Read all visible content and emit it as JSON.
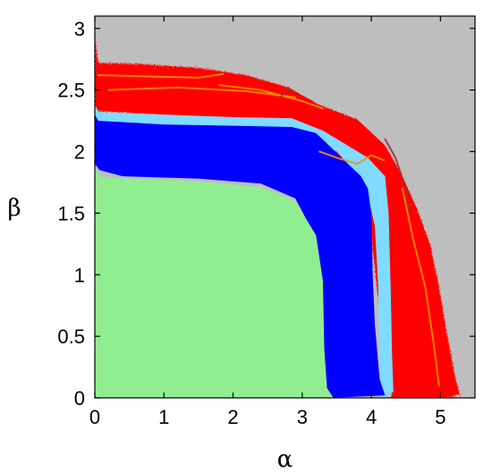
{
  "chart_data": {
    "type": "heatmap",
    "title": "",
    "xlabel": "α",
    "ylabel": "β",
    "xlim": [
      0,
      5.5
    ],
    "ylim": [
      0,
      3.1
    ],
    "x_ticks": [
      "0",
      "1",
      "2",
      "3",
      "4",
      "5"
    ],
    "y_ticks": [
      "0",
      "0.5",
      "1",
      "1.5",
      "2",
      "2.5",
      "3"
    ],
    "grid": false,
    "legend": "none",
    "colors": {
      "background": "#bebebe",
      "green": "#90ee90",
      "blue": "#0000ff",
      "cyan": "#7fdbff",
      "red": "#ff0000",
      "orange": "#ff8c00",
      "dark": "#a03030"
    },
    "regions": [
      {
        "color": "red",
        "boundary": [
          [
            0,
            2.92
          ],
          [
            0.05,
            2.72
          ],
          [
            0.7,
            2.71
          ],
          [
            1.5,
            2.68
          ],
          [
            2.2,
            2.62
          ],
          [
            2.8,
            2.52
          ],
          [
            3.25,
            2.38
          ],
          [
            3.8,
            2.26
          ],
          [
            4.2,
            2.05
          ],
          [
            4.45,
            1.8
          ],
          [
            4.65,
            1.55
          ],
          [
            4.85,
            1.25
          ],
          [
            4.98,
            0.9
          ],
          [
            5.1,
            0.5
          ],
          [
            5.22,
            0.15
          ],
          [
            5.28,
            0.03
          ],
          [
            5.1,
            0.0
          ],
          [
            4.3,
            0.0
          ],
          [
            4.2,
            0.35
          ],
          [
            4.08,
            0.9
          ],
          [
            3.97,
            1.45
          ],
          [
            3.88,
            1.72
          ],
          [
            3.3,
            2.12
          ],
          [
            2.5,
            2.24
          ],
          [
            1.5,
            2.28
          ],
          [
            0,
            2.33
          ]
        ]
      },
      {
        "color": "cyan",
        "boundary": [
          [
            0,
            2.38
          ],
          [
            0.06,
            2.32
          ],
          [
            1.0,
            2.3
          ],
          [
            2.0,
            2.28
          ],
          [
            2.85,
            2.27
          ],
          [
            3.3,
            2.17
          ],
          [
            3.95,
            1.95
          ],
          [
            4.2,
            1.8
          ],
          [
            4.25,
            1.5
          ],
          [
            4.28,
            0.9
          ],
          [
            4.3,
            0.35
          ],
          [
            4.32,
            0.05
          ],
          [
            4.15,
            0.0
          ],
          [
            4.12,
            0.2
          ],
          [
            4.1,
            0.9
          ],
          [
            4.05,
            1.4
          ],
          [
            3.9,
            1.75
          ],
          [
            3.5,
            2.0
          ],
          [
            3.0,
            2.12
          ],
          [
            2.0,
            2.15
          ],
          [
            1.0,
            2.18
          ],
          [
            0,
            2.23
          ]
        ]
      },
      {
        "color": "blue",
        "boundary": [
          [
            0,
            2.3
          ],
          [
            0.05,
            2.25
          ],
          [
            1.0,
            2.22
          ],
          [
            2.0,
            2.21
          ],
          [
            2.85,
            2.2
          ],
          [
            3.2,
            2.15
          ],
          [
            3.35,
            2.07
          ],
          [
            3.55,
            1.96
          ],
          [
            3.85,
            1.8
          ],
          [
            3.95,
            1.7
          ],
          [
            4.0,
            1.5
          ],
          [
            4.02,
            1.0
          ],
          [
            4.05,
            0.6
          ],
          [
            4.12,
            0.15
          ],
          [
            4.2,
            0.02
          ],
          [
            3.35,
            0.0
          ],
          [
            3.28,
            0.05
          ],
          [
            3.28,
            0.9
          ],
          [
            3.2,
            1.3
          ],
          [
            2.9,
            1.62
          ],
          [
            2.4,
            1.74
          ],
          [
            1.5,
            1.78
          ],
          [
            0.4,
            1.8
          ],
          [
            0.07,
            1.85
          ],
          [
            0,
            1.9
          ]
        ]
      },
      {
        "color": "green",
        "boundary": [
          [
            0,
            1.88
          ],
          [
            0.08,
            1.79
          ],
          [
            0.5,
            1.78
          ],
          [
            1.5,
            1.76
          ],
          [
            2.4,
            1.71
          ],
          [
            2.9,
            1.6
          ],
          [
            3.2,
            1.32
          ],
          [
            3.3,
            0.95
          ],
          [
            3.32,
            0.4
          ],
          [
            3.36,
            0.08
          ],
          [
            3.45,
            0.0
          ],
          [
            0,
            0
          ]
        ]
      }
    ],
    "curves": [
      {
        "color": "orange",
        "points": [
          [
            0.05,
            2.62
          ],
          [
            0.8,
            2.61
          ],
          [
            1.5,
            2.6
          ],
          [
            1.85,
            2.63
          ]
        ]
      },
      {
        "color": "orange",
        "points": [
          [
            0.2,
            2.5
          ],
          [
            1.2,
            2.52
          ],
          [
            2.2,
            2.49
          ],
          [
            2.9,
            2.44
          ]
        ]
      },
      {
        "color": "orange",
        "points": [
          [
            3.25,
            2.0
          ],
          [
            3.5,
            1.95
          ],
          [
            3.8,
            1.9
          ],
          [
            4.0,
            1.97
          ],
          [
            4.18,
            1.93
          ]
        ]
      },
      {
        "color": "orange",
        "points": [
          [
            4.45,
            1.7
          ],
          [
            4.6,
            1.3
          ],
          [
            4.78,
            0.9
          ],
          [
            4.9,
            0.45
          ],
          [
            4.98,
            0.1
          ]
        ]
      },
      {
        "color": "orange",
        "points": [
          [
            3.3,
            2.35
          ],
          [
            3.0,
            2.41
          ],
          [
            2.4,
            2.5
          ],
          [
            1.8,
            2.54
          ]
        ]
      },
      {
        "color": "dark",
        "points": [
          [
            2.7,
            2.45
          ],
          [
            2.8,
            2.52
          ],
          [
            2.9,
            2.45
          ]
        ]
      },
      {
        "color": "dark",
        "points": [
          [
            4.2,
            2.1
          ],
          [
            4.35,
            1.95
          ],
          [
            4.5,
            1.7
          ],
          [
            4.55,
            1.5
          ]
        ]
      }
    ]
  }
}
